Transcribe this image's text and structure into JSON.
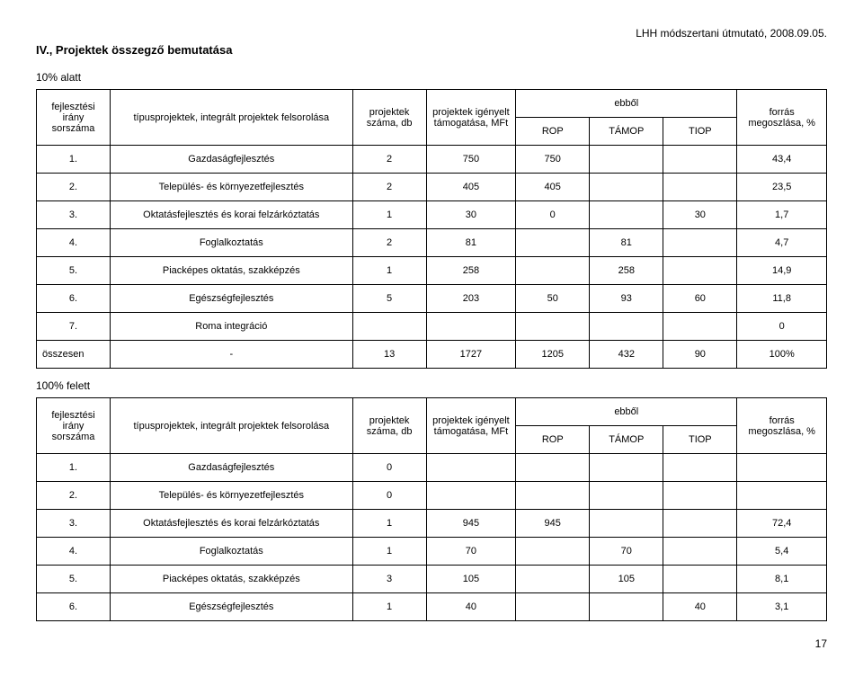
{
  "header_right": "LHH módszertani útmutató, 2008.09.05.",
  "section_title": "IV., Projektek összegző bemutatása",
  "label_10_alatt": "10% alatt",
  "label_100_felett": "100% felett",
  "page_number": "17",
  "headers": {
    "sorszama": "fejlesztési irány sorszáma",
    "felsor": "típusprojektek, integrált projektek felsorolása",
    "szama": "projektek száma, db",
    "igenyelt": "projektek igényelt támogatása, MFt",
    "ebbol": "ebből",
    "rop": "ROP",
    "tamop": "TÁMOP",
    "tiop": "TIOP",
    "forras": "forrás megoszlása, %"
  },
  "t1": {
    "rows": [
      {
        "n": "1.",
        "name": "Gazdaságfejlesztés",
        "db": "2",
        "ig": "750",
        "rop": "750",
        "tamop": "",
        "tiop": "",
        "f": "43,4"
      },
      {
        "n": "2.",
        "name": "Település- és környezetfejlesztés",
        "db": "2",
        "ig": "405",
        "rop": "405",
        "tamop": "",
        "tiop": "",
        "f": "23,5"
      },
      {
        "n": "3.",
        "name": "Oktatásfejlesztés és korai felzárkóztatás",
        "db": "1",
        "ig": "30",
        "rop": "0",
        "tamop": "",
        "tiop": "30",
        "f": "1,7"
      },
      {
        "n": "4.",
        "name": "Foglalkoztatás",
        "db": "2",
        "ig": "81",
        "rop": "",
        "tamop": "81",
        "tiop": "",
        "f": "4,7"
      },
      {
        "n": "5.",
        "name": "Piacképes oktatás, szakképzés",
        "db": "1",
        "ig": "258",
        "rop": "",
        "tamop": "258",
        "tiop": "",
        "f": "14,9"
      },
      {
        "n": "6.",
        "name": "Egészségfejlesztés",
        "db": "5",
        "ig": "203",
        "rop": "50",
        "tamop": "93",
        "tiop": "60",
        "f": "11,8"
      },
      {
        "n": "7.",
        "name": "Roma integráció",
        "db": "",
        "ig": "",
        "rop": "",
        "tamop": "",
        "tiop": "",
        "f": "0"
      }
    ],
    "sum": {
      "n": "összesen",
      "name": "-",
      "db": "13",
      "ig": "1727",
      "rop": "1205",
      "tamop": "432",
      "tiop": "90",
      "f": "100%"
    }
  },
  "t2": {
    "rows": [
      {
        "n": "1.",
        "name": "Gazdaságfejlesztés",
        "db": "0",
        "ig": "",
        "rop": "",
        "tamop": "",
        "tiop": "",
        "f": ""
      },
      {
        "n": "2.",
        "name": "Település- és környezetfejlesztés",
        "db": "0",
        "ig": "",
        "rop": "",
        "tamop": "",
        "tiop": "",
        "f": ""
      },
      {
        "n": "3.",
        "name": "Oktatásfejlesztés és korai felzárkóztatás",
        "db": "1",
        "ig": "945",
        "rop": "945",
        "tamop": "",
        "tiop": "",
        "f": "72,4"
      },
      {
        "n": "4.",
        "name": "Foglalkoztatás",
        "db": "1",
        "ig": "70",
        "rop": "",
        "tamop": "70",
        "tiop": "",
        "f": "5,4"
      },
      {
        "n": "5.",
        "name": "Piacképes oktatás, szakképzés",
        "db": "3",
        "ig": "105",
        "rop": "",
        "tamop": "105",
        "tiop": "",
        "f": "8,1"
      },
      {
        "n": "6.",
        "name": "Egészségfejlesztés",
        "db": "1",
        "ig": "40",
        "rop": "",
        "tamop": "",
        "tiop": "40",
        "f": "3,1"
      }
    ]
  }
}
